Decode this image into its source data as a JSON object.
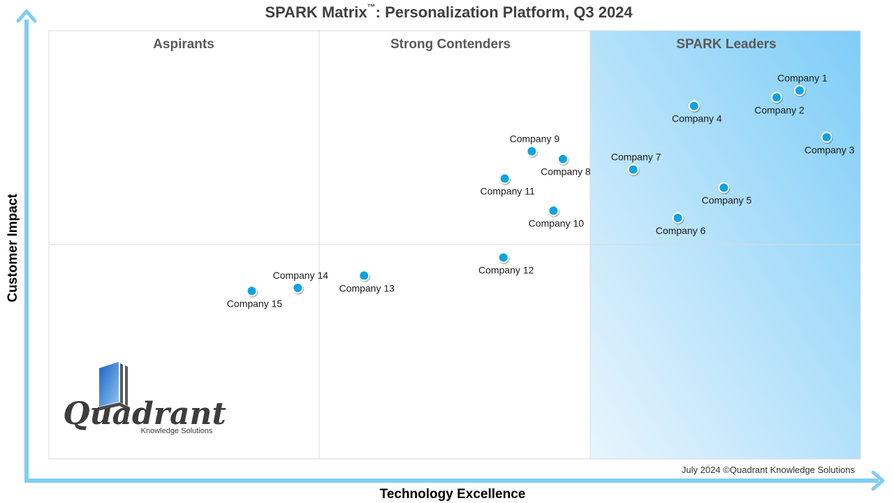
{
  "title_main": "SPARK Matrix",
  "title_tm": "™",
  "title_rest": ": Personalization Platform, Q3 2024",
  "colors": {
    "axis": "#7fcdf5",
    "point": "#0fa3e0",
    "leader_light": "#e8f5fd",
    "leader_dark": "#7ecdf7"
  },
  "footnote": "July 2024 ©Quadrant Knowledge Solutions",
  "logo": {
    "word": "Quadrant",
    "sub": "Knowledge Solutions"
  },
  "chart_data": {
    "type": "scatter",
    "xlabel": "Technology Excellence",
    "ylabel": "Customer Impact",
    "xlim": [
      0,
      3
    ],
    "ylim": [
      0,
      2
    ],
    "quadrants": [
      "Aspirants",
      "Strong Contenders",
      "SPARK Leaders"
    ],
    "points": [
      {
        "name": "Company 1",
        "x": 2.775,
        "y": 1.721,
        "label_pos": "above"
      },
      {
        "name": "Company 2",
        "x": 2.69,
        "y": 1.689,
        "label_pos": "below"
      },
      {
        "name": "Company 3",
        "x": 2.875,
        "y": 1.503,
        "label_pos": "below"
      },
      {
        "name": "Company 4",
        "x": 2.385,
        "y": 1.649,
        "label_pos": "below"
      },
      {
        "name": "Company 5",
        "x": 2.495,
        "y": 1.267,
        "label_pos": "below"
      },
      {
        "name": "Company 6",
        "x": 2.325,
        "y": 1.126,
        "label_pos": "below"
      },
      {
        "name": "Company 7",
        "x": 2.16,
        "y": 1.352,
        "label_pos": "above"
      },
      {
        "name": "Company 8",
        "x": 1.9,
        "y": 1.401,
        "label_pos": "below"
      },
      {
        "name": "Company 9",
        "x": 1.785,
        "y": 1.437,
        "label_pos": "above"
      },
      {
        "name": "Company 10",
        "x": 1.865,
        "y": 1.16,
        "label_pos": "below"
      },
      {
        "name": "Company 11",
        "x": 1.685,
        "y": 1.31,
        "label_pos": "below"
      },
      {
        "name": "Company 12",
        "x": 1.68,
        "y": 0.941,
        "label_pos": "below"
      },
      {
        "name": "Company 13",
        "x": 1.165,
        "y": 0.857,
        "label_pos": "below"
      },
      {
        "name": "Company 14",
        "x": 0.92,
        "y": 0.799,
        "label_pos": "above"
      },
      {
        "name": "Company 15",
        "x": 0.75,
        "y": 0.785,
        "label_pos": "below"
      }
    ]
  }
}
